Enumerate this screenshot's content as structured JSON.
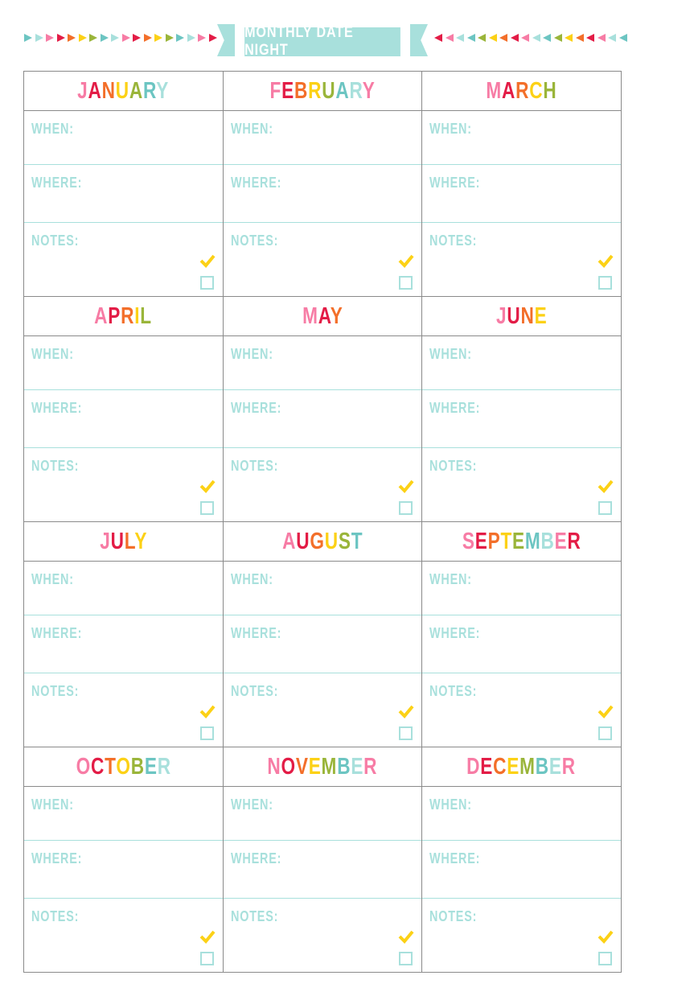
{
  "header": {
    "title": "MONTHLY DATE NIGHT"
  },
  "palette": {
    "pink": "#f77ca5",
    "red": "#e31c46",
    "orange": "#f36f2a",
    "yellow": "#fcd116",
    "green": "#9ab53a",
    "teal": "#6cc5c2",
    "light_teal": "#a8e0dc",
    "border": "#8a8a8a"
  },
  "letter_colors": [
    "#f77ca5",
    "#e31c46",
    "#f36f2a",
    "#fcd116",
    "#9ab53a",
    "#6cc5c2",
    "#a8e0dc"
  ],
  "labels": {
    "when": "WHEN:",
    "where": "WHERE:",
    "notes": "NOTES:"
  },
  "months": [
    "JANUARY",
    "FEBRUARY",
    "MARCH",
    "APRIL",
    "MAY",
    "JUNE",
    "JULY",
    "AUGUST",
    "SEPTEMBER",
    "OCTOBER",
    "NOVEMBER",
    "DECEMBER"
  ],
  "icons": {
    "check": "checkmark-icon",
    "box": "checkbox-icon",
    "triangles": "triangle-bunting"
  }
}
